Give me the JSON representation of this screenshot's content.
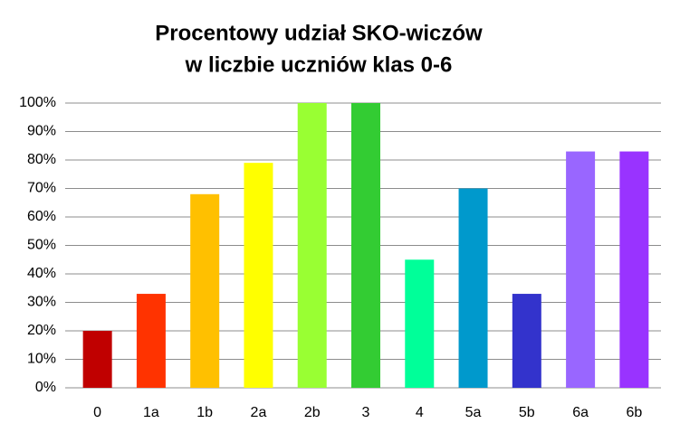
{
  "chart_data": {
    "type": "bar",
    "title": [
      "Procentowy udział SKO-wiczów",
      "w liczbie uczniów klas 0-6"
    ],
    "categories": [
      "0",
      "1a",
      "1b",
      "2a",
      "2b",
      "3",
      "4",
      "5a",
      "5b",
      "6a",
      "6b"
    ],
    "values": [
      20,
      33,
      68,
      79,
      100,
      100,
      45,
      70,
      33,
      83,
      83
    ],
    "colors": [
      "#c00000",
      "#ff3300",
      "#ffc000",
      "#ffff00",
      "#99ff33",
      "#33cc33",
      "#00ff99",
      "#0099cc",
      "#3333cc",
      "#9966ff",
      "#9933ff"
    ],
    "ylim": [
      0,
      100
    ],
    "yticks": [
      {
        "value": 0,
        "label": "0%"
      },
      {
        "value": 10,
        "label": "10%"
      },
      {
        "value": 20,
        "label": "20%"
      },
      {
        "value": 30,
        "label": "30%"
      },
      {
        "value": 40,
        "label": "40%"
      },
      {
        "value": 50,
        "label": "50%"
      },
      {
        "value": 60,
        "label": "60%"
      },
      {
        "value": 70,
        "label": "70%"
      },
      {
        "value": 80,
        "label": "80%"
      },
      {
        "value": 90,
        "label": "90%"
      },
      {
        "value": 100,
        "label": "100%"
      }
    ],
    "grid": true
  }
}
